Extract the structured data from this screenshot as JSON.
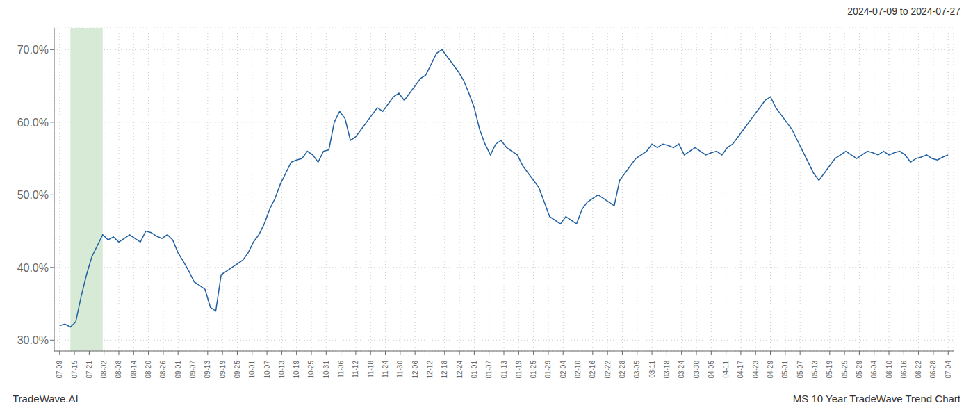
{
  "chart_data": {
    "type": "line",
    "title": "MS 10 Year TradeWave Trend Chart",
    "subtitle": "2024-07-09 to 2024-07-27",
    "annotations": [
      "TradeWave.AI"
    ],
    "color": "#2060a0",
    "grid": true,
    "highlight": {
      "start": 2,
      "end": 8,
      "color": "#d6ead6"
    },
    "xlim": [
      -1,
      166
    ],
    "xticks": [
      {
        "value": 0,
        "label": "07-09"
      },
      {
        "value": 2.75,
        "label": "07-15"
      },
      {
        "value": 5.5,
        "label": "07-21"
      },
      {
        "value": 8.25,
        "label": "08-02"
      },
      {
        "value": 11,
        "label": "08-08"
      },
      {
        "value": 13.75,
        "label": "08-14"
      },
      {
        "value": 16.5,
        "label": "08-20"
      },
      {
        "value": 19.25,
        "label": "08-26"
      },
      {
        "value": 22,
        "label": "09-01"
      },
      {
        "value": 24.75,
        "label": "09-07"
      },
      {
        "value": 27.5,
        "label": "09-13"
      },
      {
        "value": 30.25,
        "label": "09-19"
      },
      {
        "value": 33,
        "label": "09-25"
      },
      {
        "value": 35.75,
        "label": "10-01"
      },
      {
        "value": 38.5,
        "label": "10-07"
      },
      {
        "value": 41.25,
        "label": "10-13"
      },
      {
        "value": 44,
        "label": "10-19"
      },
      {
        "value": 46.75,
        "label": "10-25"
      },
      {
        "value": 49.5,
        "label": "10-31"
      },
      {
        "value": 52.25,
        "label": "11-06"
      },
      {
        "value": 55,
        "label": "11-12"
      },
      {
        "value": 57.75,
        "label": "11-18"
      },
      {
        "value": 60.5,
        "label": "11-24"
      },
      {
        "value": 63.25,
        "label": "11-30"
      },
      {
        "value": 66,
        "label": "12-06"
      },
      {
        "value": 68.75,
        "label": "12-12"
      },
      {
        "value": 71.5,
        "label": "12-18"
      },
      {
        "value": 74.25,
        "label": "12-24"
      },
      {
        "value": 77,
        "label": "01-01"
      },
      {
        "value": 79.75,
        "label": "01-07"
      },
      {
        "value": 82.5,
        "label": "01-13"
      },
      {
        "value": 85.25,
        "label": "01-19"
      },
      {
        "value": 88,
        "label": "01-25"
      },
      {
        "value": 90.75,
        "label": "01-29"
      },
      {
        "value": 93.5,
        "label": "02-04"
      },
      {
        "value": 96.25,
        "label": "02-10"
      },
      {
        "value": 99,
        "label": "02-16"
      },
      {
        "value": 101.75,
        "label": "02-22"
      },
      {
        "value": 104.5,
        "label": "02-28"
      },
      {
        "value": 107.25,
        "label": "03-05"
      },
      {
        "value": 110,
        "label": "03-11"
      },
      {
        "value": 112.75,
        "label": "03-18"
      },
      {
        "value": 115.5,
        "label": "03-24"
      },
      {
        "value": 118.25,
        "label": "03-30"
      },
      {
        "value": 121,
        "label": "04-05"
      },
      {
        "value": 123.75,
        "label": "04-11"
      },
      {
        "value": 126.5,
        "label": "04-17"
      },
      {
        "value": 129.25,
        "label": "04-23"
      },
      {
        "value": 132,
        "label": "04-29"
      },
      {
        "value": 134.75,
        "label": "05-01"
      },
      {
        "value": 137.5,
        "label": "05-07"
      },
      {
        "value": 140.25,
        "label": "05-13"
      },
      {
        "value": 143,
        "label": "05-19"
      },
      {
        "value": 145.75,
        "label": "05-25"
      },
      {
        "value": 148.5,
        "label": "05-29"
      },
      {
        "value": 151.25,
        "label": "06-04"
      },
      {
        "value": 154,
        "label": "06-10"
      },
      {
        "value": 156.75,
        "label": "06-16"
      },
      {
        "value": 159.5,
        "label": "06-22"
      },
      {
        "value": 162.25,
        "label": "06-28"
      },
      {
        "value": 165,
        "label": "07-04"
      }
    ],
    "ylim": [
      0.285,
      0.73
    ],
    "yticks": [
      {
        "value": 0.3,
        "label": "30.0%"
      },
      {
        "value": 0.4,
        "label": "40.0%"
      },
      {
        "value": 0.5,
        "label": "50.0%"
      },
      {
        "value": 0.6,
        "label": "60.0%"
      },
      {
        "value": 0.7,
        "label": "70.0%"
      }
    ],
    "values": [
      0.32,
      0.322,
      0.318,
      0.325,
      0.36,
      0.39,
      0.415,
      0.43,
      0.445,
      0.438,
      0.442,
      0.435,
      0.44,
      0.445,
      0.44,
      0.435,
      0.45,
      0.448,
      0.443,
      0.44,
      0.445,
      0.438,
      0.42,
      0.408,
      0.395,
      0.38,
      0.375,
      0.37,
      0.345,
      0.34,
      0.39,
      0.395,
      0.4,
      0.405,
      0.41,
      0.42,
      0.435,
      0.445,
      0.46,
      0.48,
      0.495,
      0.515,
      0.53,
      0.545,
      0.548,
      0.55,
      0.56,
      0.555,
      0.545,
      0.56,
      0.562,
      0.6,
      0.615,
      0.605,
      0.575,
      0.58,
      0.59,
      0.6,
      0.61,
      0.62,
      0.615,
      0.625,
      0.635,
      0.64,
      0.63,
      0.64,
      0.65,
      0.66,
      0.665,
      0.68,
      0.695,
      0.7,
      0.69,
      0.68,
      0.67,
      0.658,
      0.64,
      0.62,
      0.59,
      0.57,
      0.555,
      0.57,
      0.575,
      0.565,
      0.56,
      0.555,
      0.54,
      0.53,
      0.52,
      0.51,
      0.49,
      0.47,
      0.465,
      0.46,
      0.47,
      0.465,
      0.46,
      0.48,
      0.49,
      0.495,
      0.5,
      0.495,
      0.49,
      0.485,
      0.52,
      0.53,
      0.54,
      0.55,
      0.555,
      0.56,
      0.57,
      0.565,
      0.57,
      0.568,
      0.565,
      0.57,
      0.555,
      0.56,
      0.565,
      0.56,
      0.555,
      0.558,
      0.56,
      0.555,
      0.565,
      0.57,
      0.58,
      0.59,
      0.6,
      0.61,
      0.62,
      0.63,
      0.635,
      0.62,
      0.61,
      0.6,
      0.59,
      0.575,
      0.56,
      0.545,
      0.53,
      0.52,
      0.53,
      0.54,
      0.55,
      0.555,
      0.56,
      0.555,
      0.55,
      0.555,
      0.56,
      0.558,
      0.555,
      0.56,
      0.555,
      0.558,
      0.56,
      0.555,
      0.545,
      0.55,
      0.552,
      0.555,
      0.55,
      0.548,
      0.552,
      0.555
    ]
  }
}
